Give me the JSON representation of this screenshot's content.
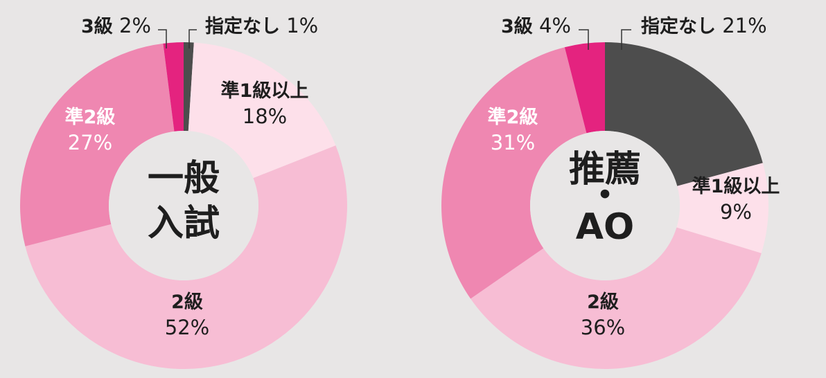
{
  "colors": {
    "background": "#e8e6e6",
    "leader_line": "#333333"
  },
  "chart_data": [
    {
      "type": "pie",
      "center_lines": [
        "一般",
        "入試"
      ],
      "segments": [
        {
          "label": "指定なし",
          "value_label": "1%",
          "value": 1,
          "color": "#4d4d4d",
          "label_position": "outside"
        },
        {
          "label": "準1級以上",
          "value_label": "18%",
          "value": 18,
          "color": "#fde0ea",
          "label_position": "inside",
          "text_color": "#1e1e1e"
        },
        {
          "label": "2級",
          "value_label": "52%",
          "value": 52,
          "color": "#f7bdd4",
          "label_position": "inside",
          "text_color": "#1e1e1e"
        },
        {
          "label": "準2級",
          "value_label": "27%",
          "value": 27,
          "color": "#ef87b1",
          "label_position": "inside",
          "text_color": "#ffffff"
        },
        {
          "label": "3級",
          "value_label": "2%",
          "value": 2,
          "color": "#e4237f",
          "label_position": "outside"
        }
      ]
    },
    {
      "type": "pie",
      "center_lines": [
        "推薦",
        "・",
        "AO"
      ],
      "segments": [
        {
          "label": "指定なし",
          "value_label": "21%",
          "value": 21,
          "color": "#4d4d4d",
          "label_position": "outside"
        },
        {
          "label": "準1級以上",
          "value_label": "9%",
          "value": 9,
          "color": "#fde0ea",
          "label_position": "inside",
          "text_color": "#1e1e1e"
        },
        {
          "label": "2級",
          "value_label": "36%",
          "value": 36,
          "color": "#f7bdd4",
          "label_position": "inside",
          "text_color": "#1e1e1e"
        },
        {
          "label": "準2級",
          "value_label": "31%",
          "value": 31,
          "color": "#ef87b1",
          "label_position": "inside",
          "text_color": "#ffffff"
        },
        {
          "label": "3級",
          "value_label": "4%",
          "value": 4,
          "color": "#e4237f",
          "label_position": "outside"
        }
      ]
    }
  ]
}
